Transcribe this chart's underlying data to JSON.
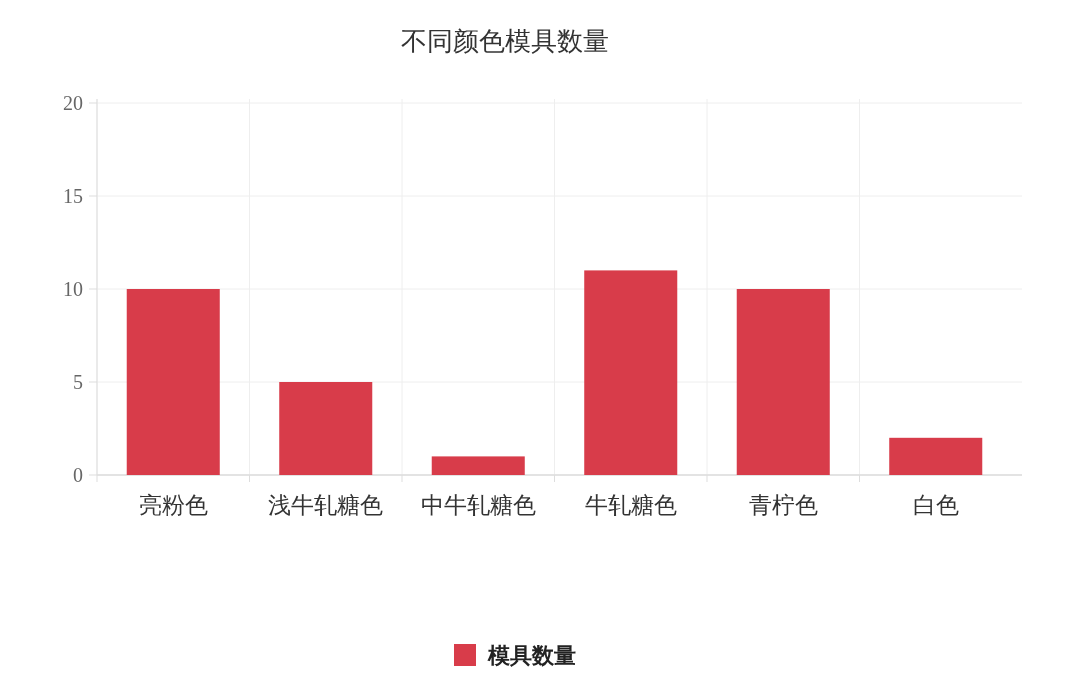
{
  "chart_data": {
    "type": "bar",
    "title": "不同颜色模具数量",
    "categories": [
      "亮粉色",
      "浅牛轧糖色",
      "中牛轧糖色",
      "牛轧糖色",
      "青柠色",
      "白色"
    ],
    "series": [
      {
        "name": "模具数量",
        "color": "#d83c4a",
        "values": [
          10,
          5,
          1,
          11,
          10,
          2
        ]
      }
    ],
    "ylim": [
      0,
      20
    ],
    "yticks": [
      0,
      5,
      10,
      15,
      20
    ],
    "grid": true,
    "legend": "bottom"
  }
}
